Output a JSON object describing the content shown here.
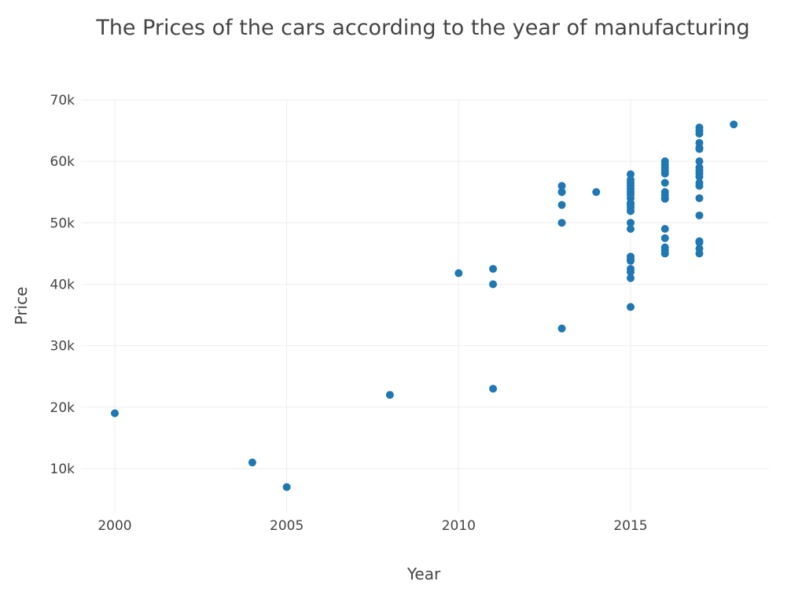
{
  "chart_data": {
    "type": "scatter",
    "title": "The Prices of the cars according to the year of manufacturing",
    "xlabel": "Year",
    "ylabel": "Price",
    "xlim": [
      1999.3,
      2019.2
    ],
    "ylim": [
      3000,
      70000
    ],
    "x_ticks": [
      {
        "value": 2000,
        "label": "2000"
      },
      {
        "value": 2005,
        "label": "2005"
      },
      {
        "value": 2010,
        "label": "2010"
      },
      {
        "value": 2015,
        "label": "2015"
      }
    ],
    "y_ticks": [
      {
        "value": 10000,
        "label": "10k"
      },
      {
        "value": 20000,
        "label": "20k"
      },
      {
        "value": 30000,
        "label": "30k"
      },
      {
        "value": 40000,
        "label": "40k"
      },
      {
        "value": 50000,
        "label": "50k"
      },
      {
        "value": 60000,
        "label": "60k"
      },
      {
        "value": 70000,
        "label": "70k"
      }
    ],
    "grid": true,
    "marker_color": "#1f77b4",
    "series": [
      {
        "x": [
          2000,
          2004,
          2005,
          2008,
          2010,
          2011,
          2011,
          2011,
          2013,
          2013,
          2013,
          2013,
          2013,
          2013,
          2014,
          2015,
          2015,
          2015,
          2015,
          2015,
          2015,
          2015,
          2015,
          2015,
          2015,
          2015,
          2015,
          2015,
          2015,
          2015,
          2015,
          2015,
          2015,
          2015,
          2015,
          2015,
          2015,
          2016,
          2016,
          2016,
          2016,
          2016,
          2016,
          2016,
          2016,
          2016,
          2016,
          2016,
          2016,
          2016,
          2016,
          2016,
          2017,
          2017,
          2017,
          2017,
          2017,
          2017,
          2017,
          2017,
          2017,
          2017,
          2017,
          2017,
          2017,
          2017,
          2017,
          2017,
          2017,
          2017,
          2017,
          2018
        ],
        "y": [
          19000,
          11000,
          7000,
          22000,
          41800,
          42500,
          40000,
          23000,
          56000,
          55000,
          52900,
          50000,
          32800,
          55000,
          55000,
          57900,
          57000,
          56000,
          55500,
          55000,
          54000,
          53000,
          52500,
          52000,
          50000,
          49000,
          44500,
          44000,
          43800,
          42500,
          42000,
          41000,
          36300,
          53200,
          51900,
          56500,
          54600,
          60000,
          59500,
          58500,
          58000,
          56500,
          55000,
          54500,
          54000,
          49000,
          47500,
          46000,
          45500,
          45000,
          59000,
          53900,
          65500,
          65000,
          64500,
          63000,
          62000,
          60000,
          59000,
          58500,
          58000,
          57500,
          56500,
          56000,
          54000,
          51200,
          47000,
          46800,
          45800,
          45000,
          62200,
          66000
        ]
      }
    ]
  }
}
